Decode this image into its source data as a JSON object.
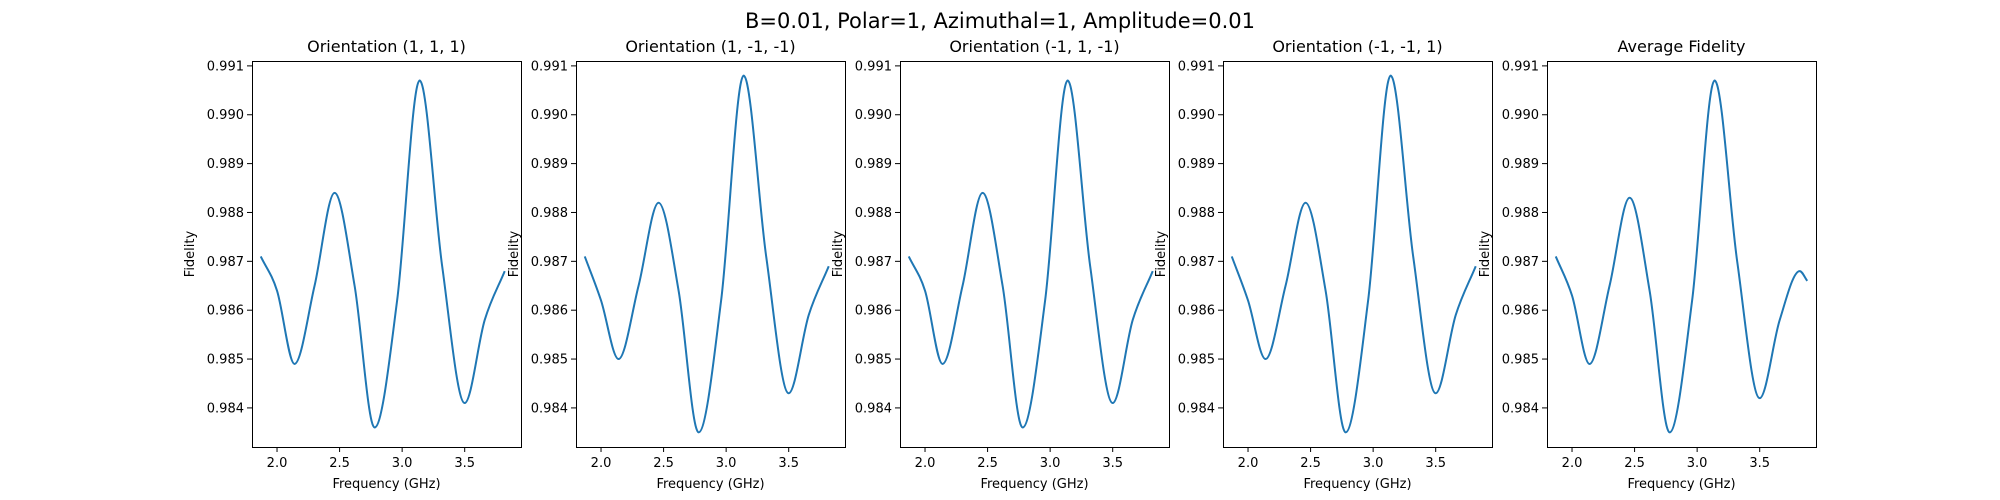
{
  "suptitle": "B=0.01, Polar=1, Azimuthal=1, Amplitude=0.01",
  "chart_data": [
    {
      "type": "line",
      "title": "Orientation (1, 1, 1)",
      "xlabel": "Frequency (GHz)",
      "ylabel": "Fidelity",
      "xlim": [
        1.8,
        3.95
      ],
      "ylim": [
        0.9832,
        0.9911
      ],
      "xticks": [
        2.0,
        2.5,
        3.0,
        3.5
      ],
      "xtick_labels": [
        "2.0",
        "2.5",
        "3.0",
        "3.5"
      ],
      "yticks": [
        0.984,
        0.985,
        0.986,
        0.987,
        0.988,
        0.989,
        0.99,
        0.991
      ],
      "ytick_labels": [
        "0.984",
        "0.985",
        "0.986",
        "0.987",
        "0.988",
        "0.989",
        "0.990",
        "0.991"
      ],
      "grid": false,
      "color": "#1f77b4",
      "series": [
        {
          "x": [
            1.87,
            2.0,
            2.14,
            2.3,
            2.46,
            2.62,
            2.78,
            2.96,
            3.14,
            3.32,
            3.5,
            3.66,
            3.82
          ],
          "values": [
            0.9871,
            0.9864,
            0.9849,
            0.9865,
            0.9884,
            0.9865,
            0.9836,
            0.9862,
            0.9907,
            0.9869,
            0.9841,
            0.9858,
            0.9868
          ]
        }
      ]
    },
    {
      "type": "line",
      "title": "Orientation (1, -1, -1)",
      "xlabel": "Frequency (GHz)",
      "ylabel": "Fidelity",
      "xlim": [
        1.8,
        3.95
      ],
      "ylim": [
        0.9832,
        0.9911
      ],
      "xticks": [
        2.0,
        2.5,
        3.0,
        3.5
      ],
      "xtick_labels": [
        "2.0",
        "2.5",
        "3.0",
        "3.5"
      ],
      "yticks": [
        0.984,
        0.985,
        0.986,
        0.987,
        0.988,
        0.989,
        0.99,
        0.991
      ],
      "ytick_labels": [
        "0.984",
        "0.985",
        "0.986",
        "0.987",
        "0.988",
        "0.989",
        "0.990",
        "0.991"
      ],
      "grid": false,
      "color": "#1f77b4",
      "series": [
        {
          "x": [
            1.87,
            2.0,
            2.14,
            2.3,
            2.46,
            2.62,
            2.78,
            2.96,
            3.14,
            3.32,
            3.5,
            3.66,
            3.82
          ],
          "values": [
            0.9871,
            0.9862,
            0.985,
            0.9865,
            0.9882,
            0.9864,
            0.9835,
            0.9862,
            0.9908,
            0.9871,
            0.9843,
            0.9859,
            0.9869
          ]
        }
      ]
    },
    {
      "type": "line",
      "title": "Orientation (-1, 1, -1)",
      "xlabel": "Frequency (GHz)",
      "ylabel": "Fidelity",
      "xlim": [
        1.8,
        3.95
      ],
      "ylim": [
        0.9832,
        0.9911
      ],
      "xticks": [
        2.0,
        2.5,
        3.0,
        3.5
      ],
      "xtick_labels": [
        "2.0",
        "2.5",
        "3.0",
        "3.5"
      ],
      "yticks": [
        0.984,
        0.985,
        0.986,
        0.987,
        0.988,
        0.989,
        0.99,
        0.991
      ],
      "ytick_labels": [
        "0.984",
        "0.985",
        "0.986",
        "0.987",
        "0.988",
        "0.989",
        "0.990",
        "0.991"
      ],
      "grid": false,
      "color": "#1f77b4",
      "series": [
        {
          "x": [
            1.87,
            2.0,
            2.14,
            2.3,
            2.46,
            2.62,
            2.78,
            2.96,
            3.14,
            3.32,
            3.5,
            3.66,
            3.82
          ],
          "values": [
            0.9871,
            0.9864,
            0.9849,
            0.9865,
            0.9884,
            0.9865,
            0.9836,
            0.9862,
            0.9907,
            0.9869,
            0.9841,
            0.9858,
            0.9868
          ]
        }
      ]
    },
    {
      "type": "line",
      "title": "Orientation (-1, -1, 1)",
      "xlabel": "Frequency (GHz)",
      "ylabel": "Fidelity",
      "xlim": [
        1.8,
        3.95
      ],
      "ylim": [
        0.9832,
        0.9911
      ],
      "xticks": [
        2.0,
        2.5,
        3.0,
        3.5
      ],
      "xtick_labels": [
        "2.0",
        "2.5",
        "3.0",
        "3.5"
      ],
      "yticks": [
        0.984,
        0.985,
        0.986,
        0.987,
        0.988,
        0.989,
        0.99,
        0.991
      ],
      "ytick_labels": [
        "0.984",
        "0.985",
        "0.986",
        "0.987",
        "0.988",
        "0.989",
        "0.990",
        "0.991"
      ],
      "grid": false,
      "color": "#1f77b4",
      "series": [
        {
          "x": [
            1.87,
            2.0,
            2.14,
            2.3,
            2.46,
            2.62,
            2.78,
            2.96,
            3.14,
            3.32,
            3.5,
            3.66,
            3.82
          ],
          "values": [
            0.9871,
            0.9862,
            0.985,
            0.9865,
            0.9882,
            0.9864,
            0.9835,
            0.9862,
            0.9908,
            0.9871,
            0.9843,
            0.9859,
            0.9869
          ]
        }
      ]
    },
    {
      "type": "line",
      "title": "Average Fidelity",
      "xlabel": "Frequency (GHz)",
      "ylabel": "Fidelity",
      "xlim": [
        1.8,
        3.95
      ],
      "ylim": [
        0.9832,
        0.9911
      ],
      "xticks": [
        2.0,
        2.5,
        3.0,
        3.5
      ],
      "xtick_labels": [
        "2.0",
        "2.5",
        "3.0",
        "3.5"
      ],
      "yticks": [
        0.984,
        0.985,
        0.986,
        0.987,
        0.988,
        0.989,
        0.99,
        0.991
      ],
      "ytick_labels": [
        "0.984",
        "0.985",
        "0.986",
        "0.987",
        "0.988",
        "0.989",
        "0.990",
        "0.991"
      ],
      "grid": false,
      "color": "#1f77b4",
      "series": [
        {
          "x": [
            1.87,
            2.0,
            2.14,
            2.3,
            2.46,
            2.62,
            2.78,
            2.96,
            3.14,
            3.32,
            3.5,
            3.66,
            3.82,
            3.88
          ],
          "values": [
            0.9871,
            0.9863,
            0.9849,
            0.9865,
            0.9883,
            0.9864,
            0.9835,
            0.9862,
            0.9907,
            0.987,
            0.9842,
            0.9858,
            0.9868,
            0.9866
          ]
        }
      ]
    }
  ]
}
